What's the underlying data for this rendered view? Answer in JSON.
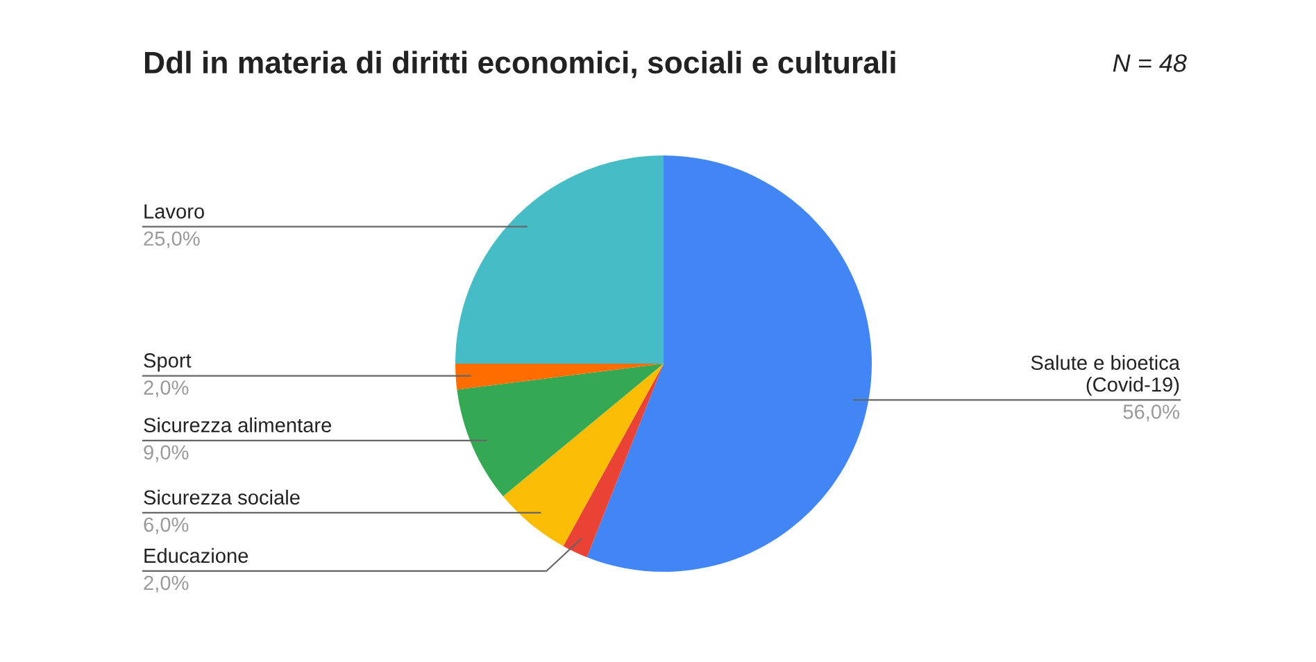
{
  "chart_data": {
    "type": "pie",
    "title": "Ddl in materia di diritti economici, sociali e culturali",
    "subtitle": "N = 48",
    "categories": [
      "Salute e bioetica\n(Covid-19)",
      "Educazione",
      "Sicurezza sociale",
      "Sicurezza alimentare",
      "Sport",
      "Lavoro"
    ],
    "values": [
      56,
      2,
      6,
      9,
      2,
      25
    ],
    "value_labels": [
      "56,0%",
      "2,0%",
      "6,0%",
      "9,0%",
      "2,0%",
      "25,0%"
    ],
    "colors": [
      "#4285f4",
      "#ea4335",
      "#fbbc04",
      "#34a853",
      "#ff6d01",
      "#46bdc6"
    ]
  }
}
